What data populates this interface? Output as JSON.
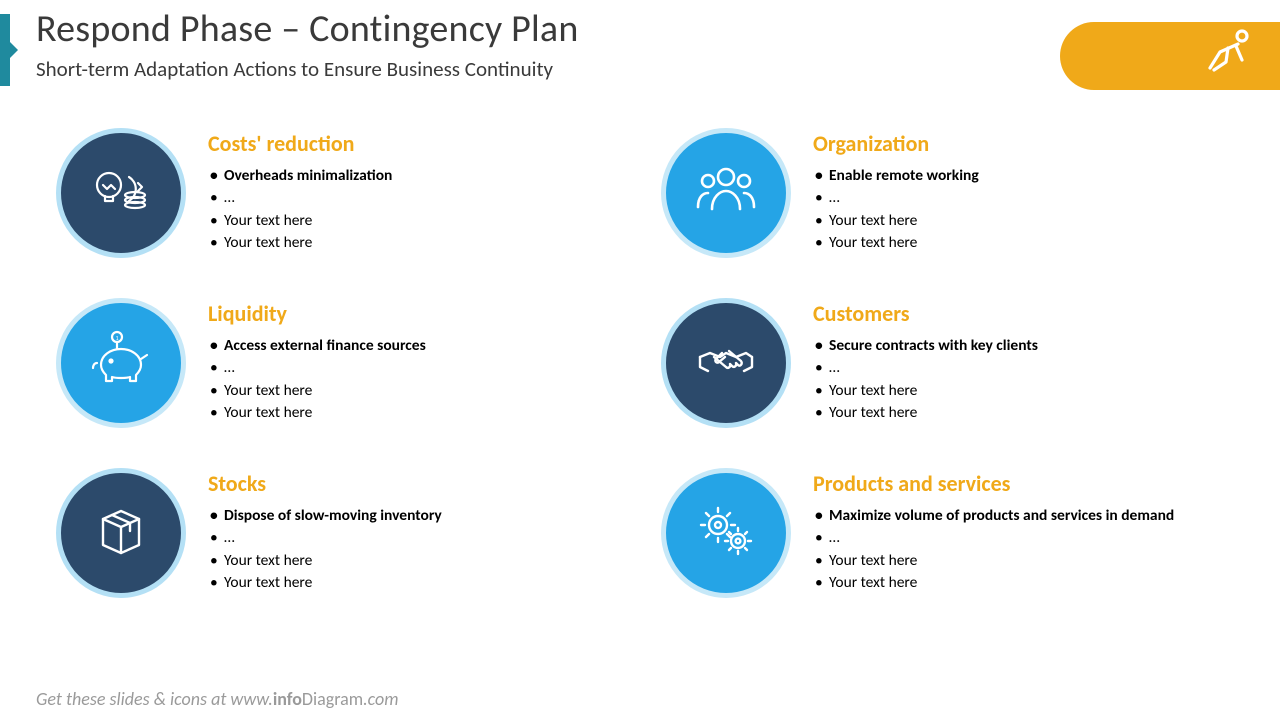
{
  "header": {
    "title": "Respond Phase – Contingency Plan",
    "subtitle": "Short-term Adaptation Actions to Ensure Business Continuity"
  },
  "badge": {
    "bg_color": "#f0a919",
    "icon": "crawling-person-icon"
  },
  "colors": {
    "accent_bar": "#1f8a9e",
    "title_text": "#3a3a3a",
    "card_title": "#f0a919",
    "circle_dark_fill": "#2c4a6b",
    "circle_dark_border": "#b4e0f5",
    "circle_light_fill": "#25a4e6",
    "circle_light_border": "#c6e8f8",
    "footer_text": "#9a9a9a",
    "icon_stroke": "#ffffff"
  },
  "cards": [
    {
      "id": "costs",
      "title": "Costs' reduction",
      "circle_style": "dark",
      "icon": "bulb-coins-icon",
      "bullets": [
        {
          "text": "Overheads minimalization",
          "bold": true
        },
        {
          "text": "…",
          "bold": false
        },
        {
          "text": "Your text here",
          "bold": false
        },
        {
          "text": "Your text here",
          "bold": false
        }
      ]
    },
    {
      "id": "organization",
      "title": "Organization",
      "circle_style": "light",
      "icon": "people-icon",
      "bullets": [
        {
          "text": "Enable remote working",
          "bold": true
        },
        {
          "text": "…",
          "bold": false
        },
        {
          "text": "Your text here",
          "bold": false
        },
        {
          "text": "Your text here",
          "bold": false
        }
      ]
    },
    {
      "id": "liquidity",
      "title": "Liquidity",
      "circle_style": "light",
      "icon": "piggy-bank-icon",
      "bullets": [
        {
          "text": "Access external finance sources",
          "bold": true
        },
        {
          "text": "…",
          "bold": false
        },
        {
          "text": "Your text here",
          "bold": false
        },
        {
          "text": "Your text here",
          "bold": false
        }
      ]
    },
    {
      "id": "customers",
      "title": "Customers",
      "circle_style": "dark",
      "icon": "handshake-icon",
      "bullets": [
        {
          "text": "Secure contracts with key clients",
          "bold": true
        },
        {
          "text": "…",
          "bold": false
        },
        {
          "text": "Your text here",
          "bold": false
        },
        {
          "text": "Your text here",
          "bold": false
        }
      ]
    },
    {
      "id": "stocks",
      "title": "Stocks",
      "circle_style": "dark",
      "icon": "box-icon",
      "bullets": [
        {
          "text": "Dispose of slow-moving inventory",
          "bold": true
        },
        {
          "text": "…",
          "bold": false
        },
        {
          "text": "Your text here",
          "bold": false
        },
        {
          "text": "Your text here",
          "bold": false
        }
      ]
    },
    {
      "id": "products",
      "title": "Products and services",
      "circle_style": "light",
      "icon": "gears-icon",
      "bullets": [
        {
          "text": "Maximize volume of products and services in demand",
          "bold": true
        },
        {
          "text": "…",
          "bold": false
        },
        {
          "text": "Your text here",
          "bold": false
        },
        {
          "text": "Your text here",
          "bold": false
        }
      ]
    }
  ],
  "footer": {
    "prefix": "Get these slides & icons at www.",
    "brand": "info",
    "brandpart": "Diagram",
    "suffix": ".com"
  }
}
